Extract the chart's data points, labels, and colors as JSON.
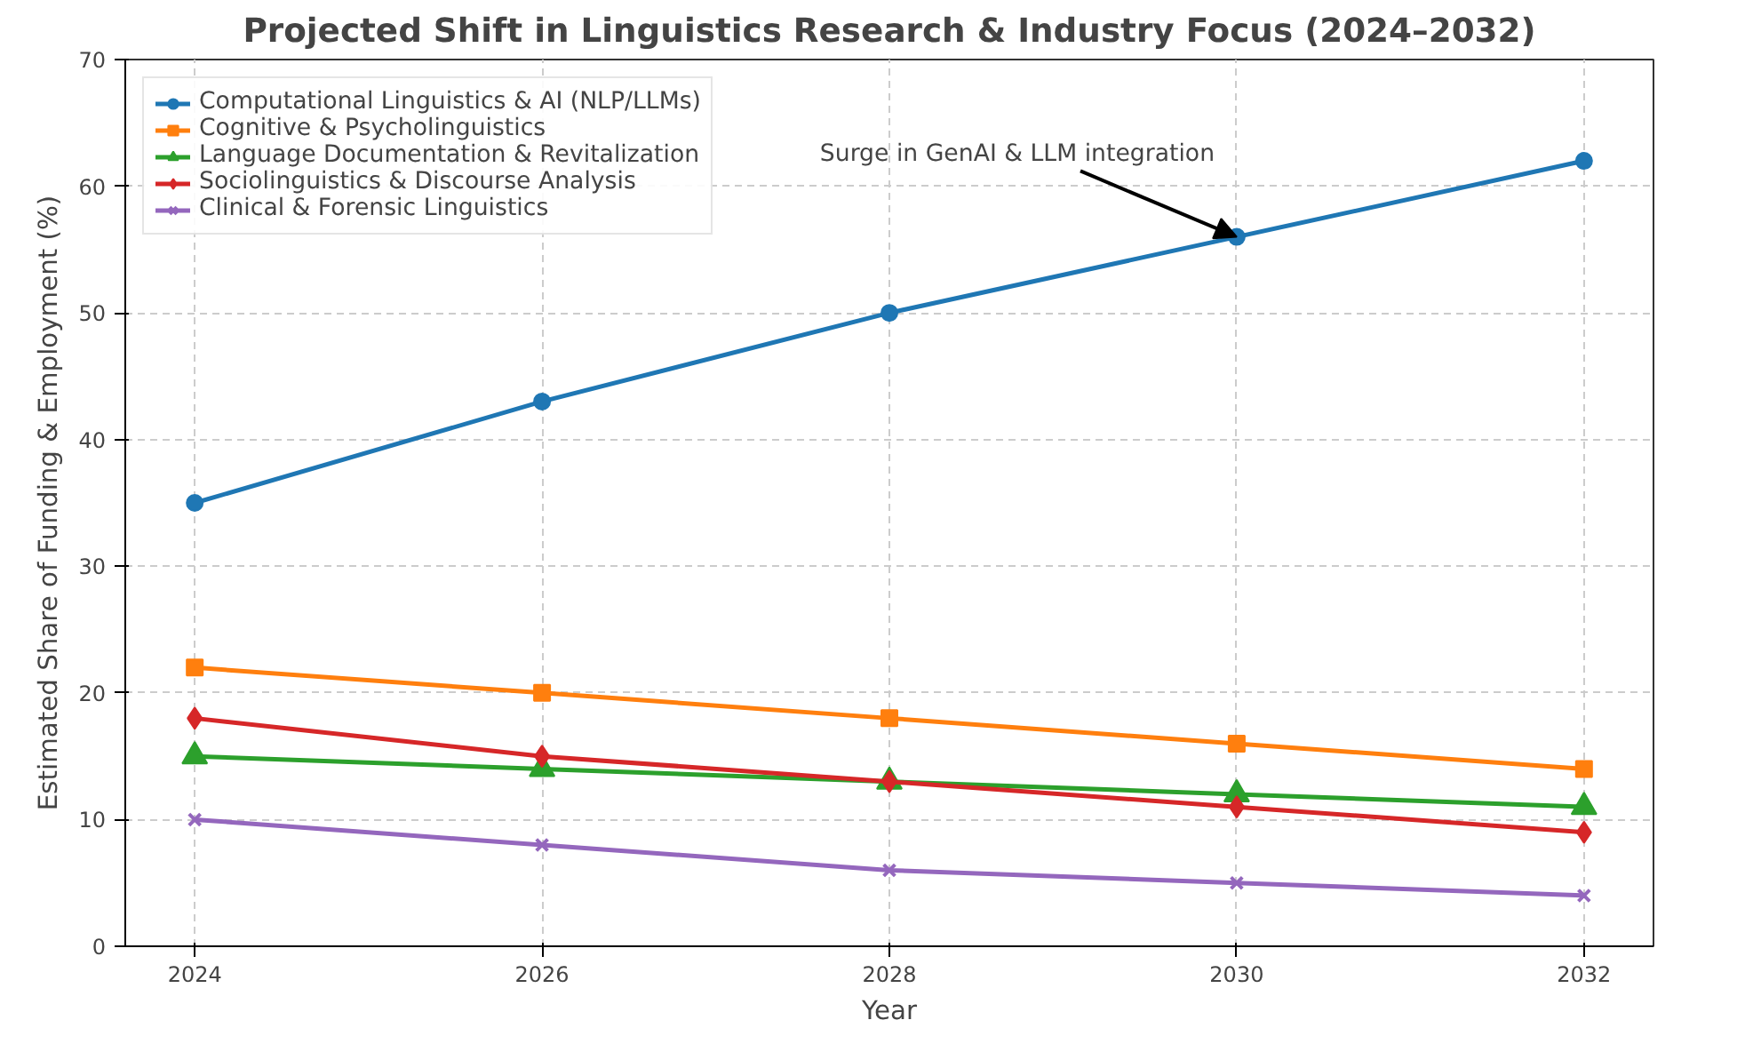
{
  "chart_data": {
    "type": "line",
    "title": "Projected Shift in Linguistics Research & Industry Focus (2024–2032)",
    "xlabel": "Year",
    "ylabel": "Estimated Share of Funding & Employment (%)",
    "x": [
      2024,
      2026,
      2028,
      2030,
      2032
    ],
    "series": [
      {
        "name": "Computational Linguistics & AI (NLP/LLMs)",
        "color": "#1f77b4",
        "marker": "circle",
        "values": [
          35,
          43,
          50,
          56,
          62
        ]
      },
      {
        "name": "Cognitive & Psycholinguistics",
        "color": "#ff7f0e",
        "marker": "square",
        "values": [
          22,
          20,
          18,
          16,
          14
        ]
      },
      {
        "name": "Language Documentation & Revitalization",
        "color": "#2ca02c",
        "marker": "triangle",
        "values": [
          15,
          14,
          13,
          12,
          11
        ]
      },
      {
        "name": "Sociolinguistics & Discourse Analysis",
        "color": "#d62728",
        "marker": "diamond",
        "values": [
          18,
          15,
          13,
          11,
          9
        ]
      },
      {
        "name": "Clinical & Forensic Linguistics",
        "color": "#9467bd",
        "marker": "cross",
        "values": [
          10,
          8,
          6,
          5,
          4
        ]
      }
    ],
    "xlim": [
      2023.6,
      2032.4
    ],
    "ylim": [
      0,
      70
    ],
    "xticks": [
      2024,
      2026,
      2028,
      2030,
      2032
    ],
    "yticks": [
      0,
      10,
      20,
      30,
      40,
      50,
      60,
      70
    ],
    "grid": true,
    "legend": "top left",
    "line_style": "solid",
    "annotations": [
      {
        "text": "Surge in GenAI & LLM integration",
        "x": 2030,
        "y": 56
      }
    ]
  }
}
